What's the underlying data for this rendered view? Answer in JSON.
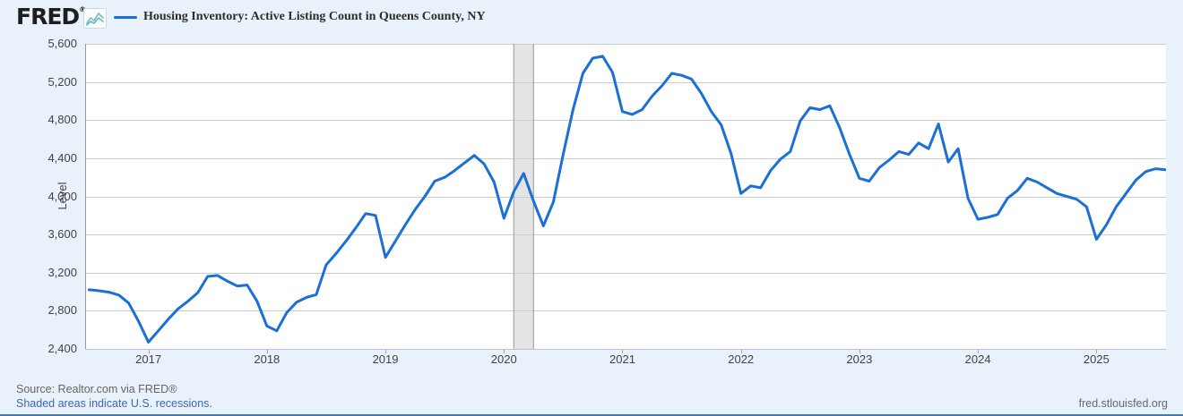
{
  "header": {
    "logo": "FRED",
    "registered": "®",
    "legend_label": "Housing Inventory: Active Listing Count in Queens County, NY"
  },
  "y_axis": {
    "label": "Level",
    "ticks": [
      "5,600",
      "5,200",
      "4,800",
      "4,400",
      "4,000",
      "3,600",
      "3,200",
      "2,800",
      "2,400"
    ]
  },
  "x_axis": {
    "ticks": [
      {
        "label": "2017",
        "month_index": 6
      },
      {
        "label": "2018",
        "month_index": 18
      },
      {
        "label": "2019",
        "month_index": 30
      },
      {
        "label": "2020",
        "month_index": 42
      },
      {
        "label": "2021",
        "month_index": 54
      },
      {
        "label": "2022",
        "month_index": 66
      },
      {
        "label": "2023",
        "month_index": 78
      },
      {
        "label": "2024",
        "month_index": 90
      },
      {
        "label": "2025",
        "month_index": 102
      }
    ]
  },
  "footer": {
    "source": "Source: Realtor.com via FRED®",
    "recession_note": "Shaded areas indicate U.S. recessions.",
    "site": "fred.stlouisfed.org"
  },
  "colors": {
    "line": "#1b6fd6",
    "background": "#e9f1fa",
    "plot_background": "#ffffff",
    "grid": "#cdcdcd",
    "recession_fill": "#e4e4e4",
    "recession_edge": "#a6a6a6",
    "axis_left": "#999999",
    "axis_bottom": "#b9c4d4",
    "tick_mark": "#9aa5b1",
    "bottom_bar": "#4677b9"
  },
  "chart_data": {
    "type": "line",
    "title": "Housing Inventory: Active Listing Count in Queens County, NY",
    "xlabel": "",
    "ylabel": "Level",
    "ylim": [
      2400,
      5600
    ],
    "y_tick_values": [
      5600,
      5200,
      4800,
      4400,
      4000,
      3600,
      3200,
      2800,
      2400
    ],
    "frequency": "monthly",
    "x_monthly_start": "2016-07",
    "x_monthly_end": "2025-08",
    "grid": "horizontal-only",
    "legend_position": "top",
    "recession_band": {
      "start": "2020-02",
      "end": "2020-04",
      "start_index": 43,
      "end_index": 45
    },
    "series": [
      {
        "name": "Housing Inventory: Active Listing Count in Queens County, NY",
        "values": [
          3020,
          3010,
          2995,
          2965,
          2880,
          2690,
          2470,
          2590,
          2710,
          2820,
          2900,
          2990,
          3160,
          3170,
          3110,
          3060,
          3070,
          2900,
          2640,
          2590,
          2780,
          2890,
          2940,
          2970,
          3280,
          3400,
          3530,
          3670,
          3820,
          3800,
          3360,
          3530,
          3700,
          3860,
          4000,
          4160,
          4200,
          4270,
          4350,
          4430,
          4340,
          4150,
          3770,
          4050,
          4240,
          3950,
          3690,
          3940,
          4440,
          4910,
          5290,
          5450,
          5470,
          5300,
          4890,
          4860,
          4910,
          5050,
          5160,
          5290,
          5270,
          5230,
          5080,
          4890,
          4750,
          4450,
          4030,
          4110,
          4090,
          4270,
          4390,
          4470,
          4790,
          4930,
          4910,
          4950,
          4720,
          4440,
          4190,
          4160,
          4300,
          4380,
          4470,
          4440,
          4560,
          4500,
          4760,
          4360,
          4500,
          3980,
          3760,
          3780,
          3810,
          3980,
          4060,
          4190,
          4150,
          4090,
          4030,
          4000,
          3970,
          3890,
          3550,
          3700,
          3890,
          4030,
          4170,
          4260,
          4290,
          4280
        ]
      }
    ]
  }
}
